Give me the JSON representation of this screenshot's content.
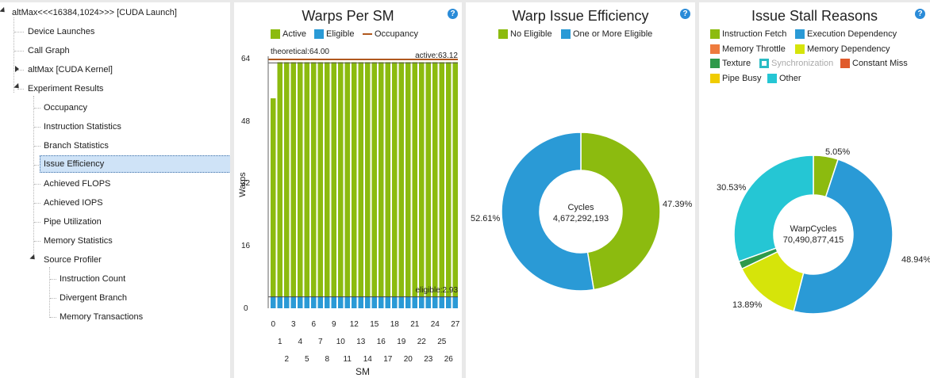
{
  "tree": {
    "root": "altMax<<<16384,1024>>> [CUDA Launch]",
    "items": [
      "Device Launches",
      "Call Graph",
      "altMax [CUDA Kernel]",
      "Experiment Results"
    ],
    "results": [
      "Occupancy",
      "Instruction Statistics",
      "Branch Statistics",
      "Issue Efficiency",
      "Achieved FLOPS",
      "Achieved IOPS",
      "Pipe Utilization",
      "Memory Statistics",
      "Source Profiler"
    ],
    "source": [
      "Instruction Count",
      "Divergent Branch",
      "Memory Transactions"
    ]
  },
  "warps": {
    "title": "Warps Per SM",
    "help": "?",
    "legend": {
      "active": "Active",
      "eligible": "Eligible",
      "occupancy": "Occupancy"
    },
    "theoretical_label": "theoretical:64.00",
    "active_label": "active:63.12",
    "eligible_label": "eligible:2.93",
    "ylabel": "Warps",
    "xlabel": "SM",
    "yticks": [
      "0",
      "16",
      "32",
      "48",
      "64"
    ],
    "xticks_top": [
      "0",
      "3",
      "6",
      "9",
      "12",
      "15",
      "18",
      "21",
      "24",
      "27"
    ],
    "xticks_mid": [
      "1",
      "4",
      "7",
      "10",
      "13",
      "16",
      "19",
      "22",
      "25"
    ],
    "xticks_bot": [
      "2",
      "5",
      "8",
      "11",
      "14",
      "17",
      "20",
      "23",
      "26"
    ]
  },
  "efficiency": {
    "title": "Warp Issue Efficiency",
    "help": "?",
    "legend": [
      "No Eligible",
      "One or More Eligible"
    ],
    "center_label": "Cycles",
    "center_value": "4,672,292,193",
    "pct_right": "47.39%",
    "pct_left": "52.61%"
  },
  "stall": {
    "title": "Issue Stall Reasons",
    "help": "?",
    "legend": [
      "Instruction Fetch",
      "Execution Dependency",
      "Memory Throttle",
      "Memory Dependency",
      "Texture",
      "Synchronization",
      "Constant Miss",
      "Pipe Busy",
      "Other"
    ],
    "center_label": "WarpCycles",
    "center_value": "70,490,877,415",
    "pct_top": "5.05%",
    "pct_right": "48.94%",
    "pct_left": "30.53%",
    "pct_bottom": "13.89%"
  },
  "chart_data": [
    {
      "type": "bar",
      "title": "Warps Per SM",
      "xlabel": "SM",
      "ylabel": "Warps",
      "ylim": [
        0,
        66
      ],
      "categories": [
        "0",
        "1",
        "2",
        "3",
        "4",
        "5",
        "6",
        "7",
        "8",
        "9",
        "10",
        "11",
        "12",
        "13",
        "14",
        "15",
        "16",
        "17",
        "18",
        "19",
        "20",
        "21",
        "22",
        "23",
        "24",
        "25",
        "26",
        "27"
      ],
      "series": [
        {
          "name": "Active",
          "color": "#8cbb0f",
          "values": [
            54,
            63.3,
            63.3,
            63.3,
            63.3,
            63.3,
            63.3,
            63.3,
            63.3,
            63.3,
            63.3,
            63.3,
            63.3,
            63.3,
            63.3,
            63.3,
            63.3,
            63.3,
            63.3,
            63.3,
            63.3,
            63.3,
            63.3,
            63.3,
            63.3,
            63.3,
            63.3,
            63.3
          ]
        },
        {
          "name": "Eligible",
          "color": "#2a9ad6",
          "values": [
            3,
            3,
            3,
            3,
            3,
            3,
            3,
            3,
            3,
            3,
            3,
            3,
            3,
            3,
            3,
            3,
            3,
            3,
            3,
            3,
            3,
            3,
            3,
            3,
            3,
            3,
            3,
            3
          ]
        }
      ],
      "lines": [
        {
          "name": "theoretical",
          "color": "#b0581e",
          "value": 64.0
        },
        {
          "name": "active",
          "color": "#444444",
          "value": 63.12
        },
        {
          "name": "eligible",
          "color": "#444444",
          "value": 2.93
        }
      ]
    },
    {
      "type": "pie",
      "title": "Warp Issue Efficiency",
      "labels": [
        "No Eligible",
        "One or More Eligible"
      ],
      "values": [
        47.39,
        52.61
      ],
      "colors": [
        "#8cbb0f",
        "#2a9ad6"
      ],
      "center": "Cycles 4,672,292,193"
    },
    {
      "type": "pie",
      "title": "Issue Stall Reasons",
      "labels": [
        "Instruction Fetch",
        "Execution Dependency",
        "Memory Throttle",
        "Memory Dependency",
        "Texture",
        "Synchronization",
        "Constant Miss",
        "Pipe Busy",
        "Other"
      ],
      "values": [
        5.05,
        48.94,
        0,
        13.89,
        1.59,
        0,
        0,
        0,
        30.53
      ],
      "colors": [
        "#8cbb0f",
        "#2a9ad6",
        "#ee7b3e",
        "#d6e40a",
        "#2e9a4a",
        "#2abcc4",
        "#e05a2b",
        "#f0cc00",
        "#25c6d4"
      ],
      "center": "WarpCycles 70,490,877,415"
    }
  ]
}
